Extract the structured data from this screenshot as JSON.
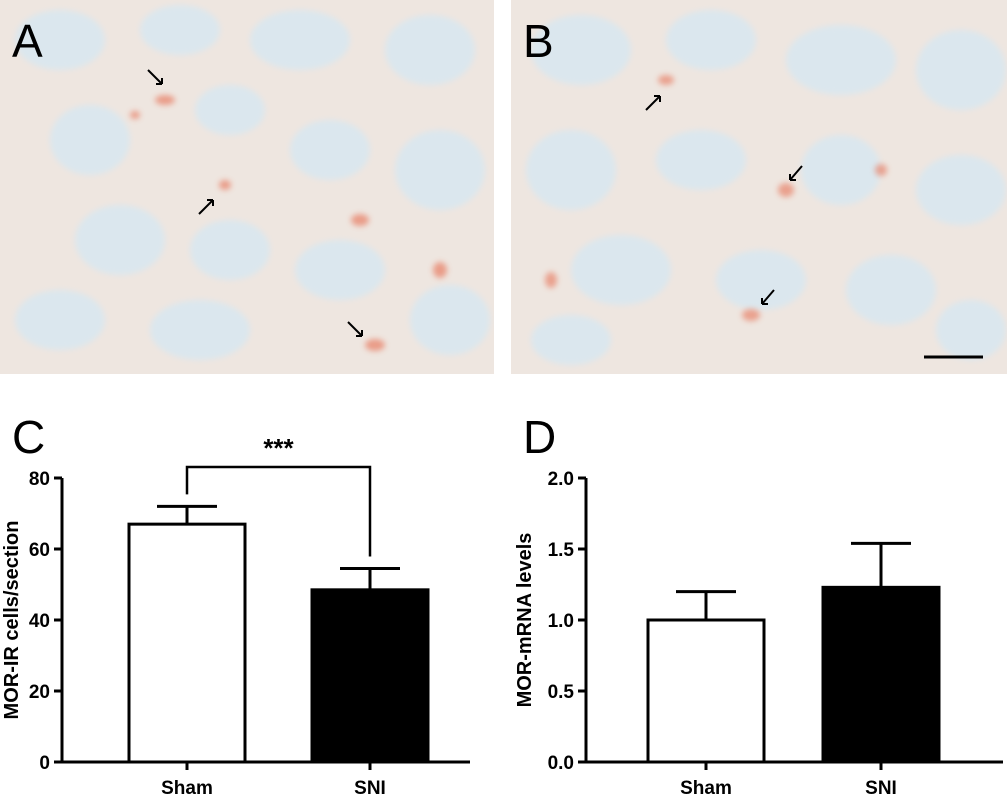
{
  "panels": {
    "a": {
      "letter": "A"
    },
    "b": {
      "letter": "B"
    },
    "c": {
      "letter": "C"
    },
    "d": {
      "letter": "D"
    }
  },
  "colors": {
    "tissue_bg": "#e6ecef",
    "stain": "#e8836a",
    "bar_fill_sni": "#000000",
    "bar_fill_sham": "#ffffff"
  },
  "chart_data": [
    {
      "type": "bar",
      "categories": [
        "Sham",
        "SNI"
      ],
      "values": [
        67,
        48.5
      ],
      "errors": [
        5,
        6
      ],
      "ylabel": "MOR-IR cells/section",
      "ylim": [
        0,
        80
      ],
      "yticks": [
        "0",
        "20",
        "40",
        "60",
        "80"
      ],
      "ytick_values": [
        0,
        20,
        40,
        60,
        80
      ],
      "significance": "***",
      "grid": false
    },
    {
      "type": "bar",
      "categories": [
        "Sham",
        "SNI"
      ],
      "values": [
        1.0,
        1.23
      ],
      "errors": [
        0.2,
        0.31
      ],
      "ylabel": "MOR-mRNA levels",
      "ylim": [
        0,
        2.0
      ],
      "yticks": [
        "0.0",
        "0.5",
        "1.0",
        "1.5",
        "2.0"
      ],
      "ytick_values": [
        0,
        0.5,
        1.0,
        1.5,
        2.0
      ],
      "grid": false
    }
  ]
}
